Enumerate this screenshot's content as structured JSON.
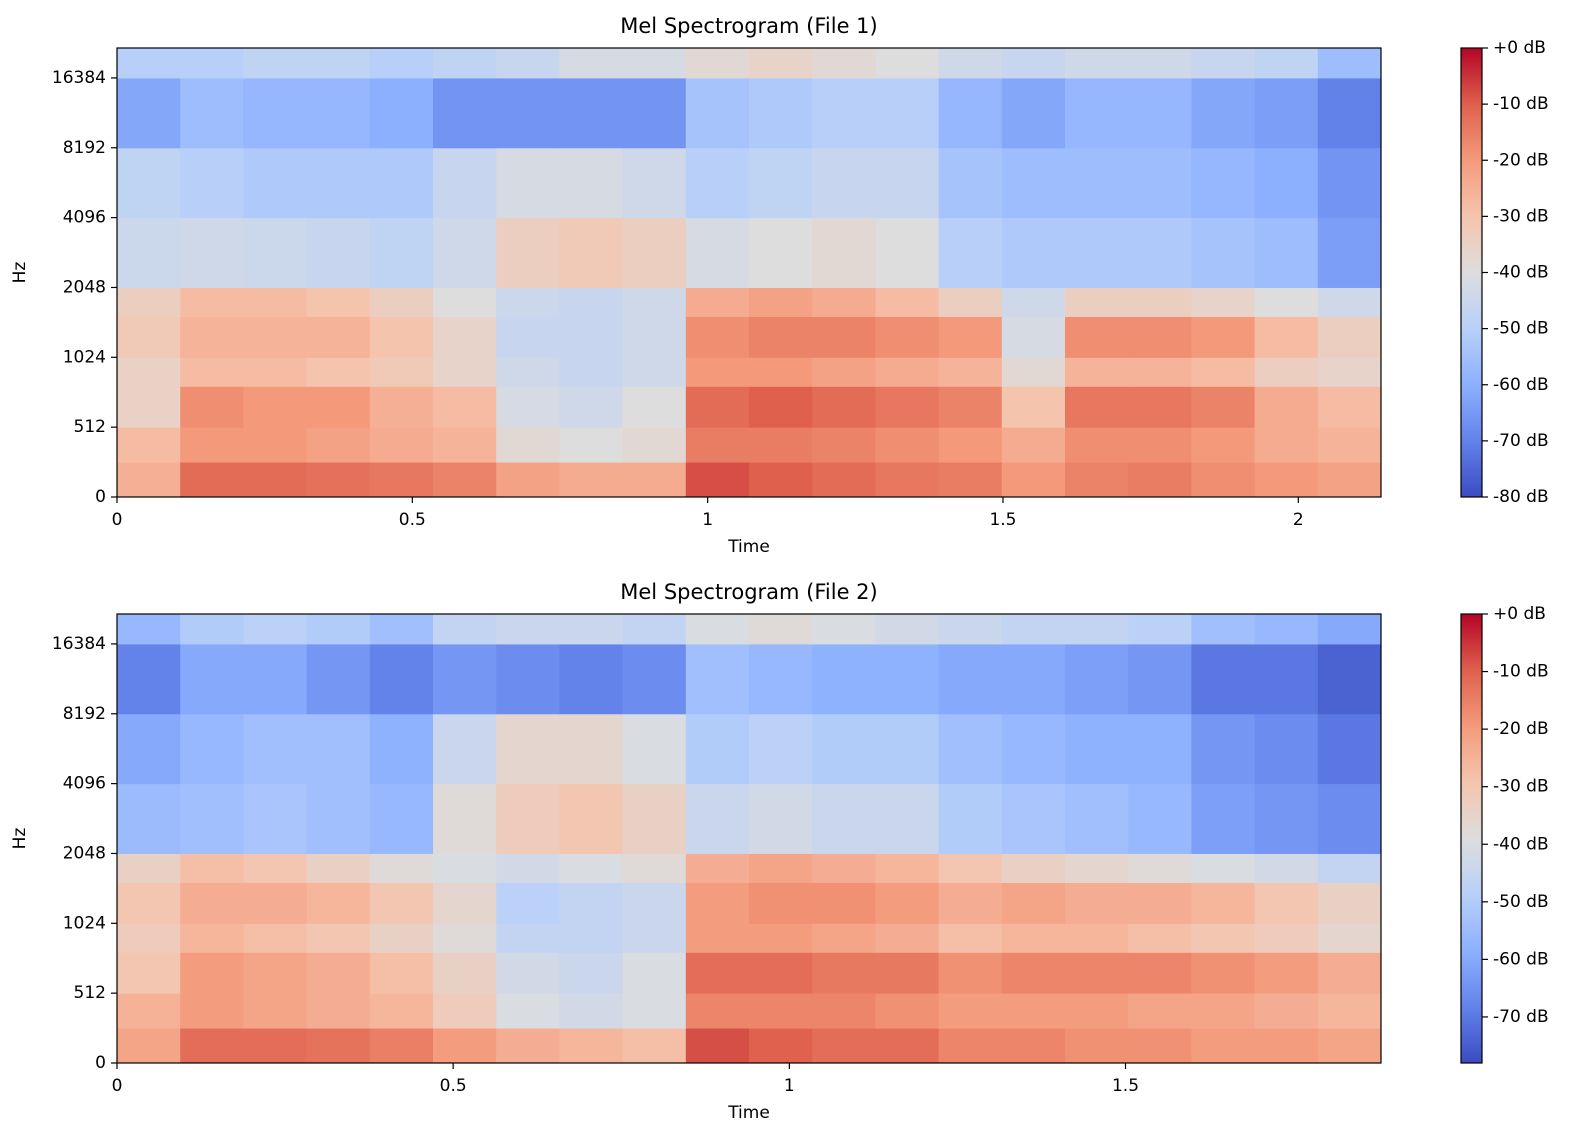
{
  "chart_data": [
    {
      "type": "heatmap",
      "title": "Mel Spectrogram (File 1)",
      "xlabel": "Time",
      "ylabel": "Hz",
      "xlim": [
        0,
        2.14
      ],
      "xticks": [
        0,
        0.5,
        1,
        1.5,
        2
      ],
      "ylim": [
        0,
        22050
      ],
      "yticks": [
        0,
        512,
        1024,
        2048,
        4096,
        8192,
        16384
      ],
      "yscale": "symlog",
      "linthresh": 512,
      "y_edges": [
        0,
        256,
        512,
        768,
        1024,
        1536,
        2048,
        4096,
        8192,
        16384,
        22050
      ],
      "colormap": "coolwarm",
      "clim": [
        -80,
        0
      ],
      "cticks": [
        {
          "value": 0,
          "label": "+0 dB"
        },
        {
          "value": -10,
          "label": "-10 dB"
        },
        {
          "value": -20,
          "label": "-20 dB"
        },
        {
          "value": -30,
          "label": "-30 dB"
        },
        {
          "value": -40,
          "label": "-40 dB"
        },
        {
          "value": -50,
          "label": "-50 dB"
        },
        {
          "value": -60,
          "label": "-60 dB"
        },
        {
          "value": -70,
          "label": "-70 dB"
        },
        {
          "value": -80,
          "label": "-80 dB"
        }
      ],
      "z": [
        [
          -25,
          -12,
          -12,
          -13,
          -14,
          -16,
          -22,
          -24,
          -24,
          -8,
          -10,
          -12,
          -14,
          -15,
          -20,
          -16,
          -15,
          -18,
          -20,
          -22
        ],
        [
          -28,
          -20,
          -20,
          -22,
          -24,
          -26,
          -38,
          -40,
          -38,
          -15,
          -15,
          -16,
          -18,
          -20,
          -24,
          -18,
          -18,
          -20,
          -24,
          -26
        ],
        [
          -35,
          -18,
          -20,
          -20,
          -25,
          -28,
          -42,
          -44,
          -40,
          -12,
          -10,
          -12,
          -14,
          -16,
          -30,
          -14,
          -14,
          -16,
          -24,
          -28
        ],
        [
          -35,
          -28,
          -28,
          -30,
          -32,
          -36,
          -44,
          -46,
          -44,
          -20,
          -20,
          -22,
          -24,
          -26,
          -38,
          -26,
          -26,
          -28,
          -34,
          -36
        ],
        [
          -32,
          -26,
          -26,
          -26,
          -30,
          -36,
          -46,
          -46,
          -44,
          -18,
          -16,
          -16,
          -18,
          -20,
          -42,
          -18,
          -18,
          -20,
          -28,
          -34
        ],
        [
          -34,
          -28,
          -28,
          -30,
          -34,
          -40,
          -45,
          -46,
          -44,
          -24,
          -22,
          -24,
          -28,
          -34,
          -44,
          -34,
          -34,
          -36,
          -40,
          -44
        ],
        [
          -45,
          -44,
          -45,
          -46,
          -48,
          -44,
          -34,
          -32,
          -34,
          -42,
          -40,
          -38,
          -40,
          -50,
          -52,
          -52,
          -52,
          -54,
          -56,
          -64
        ],
        [
          -48,
          -50,
          -52,
          -52,
          -52,
          -46,
          -42,
          -42,
          -44,
          -50,
          -48,
          -46,
          -46,
          -54,
          -56,
          -56,
          -56,
          -58,
          -60,
          -66
        ],
        [
          -62,
          -56,
          -58,
          -58,
          -60,
          -66,
          -66,
          -66,
          -66,
          -54,
          -52,
          -50,
          -50,
          -58,
          -62,
          -58,
          -58,
          -62,
          -64,
          -70
        ],
        [
          -50,
          -50,
          -48,
          -48,
          -50,
          -48,
          -46,
          -42,
          -42,
          -38,
          -36,
          -38,
          -40,
          -44,
          -46,
          -44,
          -44,
          -46,
          -48,
          -56
        ]
      ]
    },
    {
      "type": "heatmap",
      "title": "Mel Spectrogram (File 2)",
      "xlabel": "Time",
      "ylabel": "Hz",
      "xlim": [
        0,
        1.88
      ],
      "xticks": [
        0,
        0.5,
        1,
        1.5
      ],
      "ylim": [
        0,
        22050
      ],
      "yticks": [
        0,
        512,
        1024,
        2048,
        4096,
        8192,
        16384
      ],
      "yscale": "symlog",
      "linthresh": 512,
      "y_edges": [
        0,
        256,
        512,
        768,
        1024,
        1536,
        2048,
        4096,
        8192,
        16384,
        22050
      ],
      "colormap": "coolwarm",
      "clim": [
        -78,
        0
      ],
      "cticks": [
        {
          "value": 0,
          "label": "+0 dB"
        },
        {
          "value": -10,
          "label": "-10 dB"
        },
        {
          "value": -20,
          "label": "-20 dB"
        },
        {
          "value": -30,
          "label": "-30 dB"
        },
        {
          "value": -40,
          "label": "-40 dB"
        },
        {
          "value": -50,
          "label": "-50 dB"
        },
        {
          "value": -60,
          "label": "-60 dB"
        },
        {
          "value": -70,
          "label": "-70 dB"
        }
      ],
      "z": [
        [
          -22,
          -12,
          -12,
          -13,
          -15,
          -20,
          -24,
          -26,
          -28,
          -8,
          -10,
          -12,
          -12,
          -16,
          -16,
          -18,
          -18,
          -20,
          -20,
          -22
        ],
        [
          -25,
          -20,
          -22,
          -24,
          -26,
          -32,
          -40,
          -42,
          -40,
          -16,
          -16,
          -16,
          -18,
          -20,
          -20,
          -20,
          -22,
          -22,
          -24,
          -26
        ],
        [
          -30,
          -20,
          -22,
          -24,
          -28,
          -34,
          -42,
          -44,
          -40,
          -12,
          -12,
          -14,
          -14,
          -18,
          -16,
          -16,
          -16,
          -18,
          -20,
          -24
        ],
        [
          -32,
          -26,
          -28,
          -30,
          -34,
          -38,
          -46,
          -46,
          -44,
          -20,
          -20,
          -22,
          -24,
          -28,
          -26,
          -26,
          -28,
          -30,
          -32,
          -36
        ],
        [
          -30,
          -24,
          -24,
          -26,
          -30,
          -36,
          -48,
          -46,
          -44,
          -20,
          -18,
          -18,
          -20,
          -24,
          -22,
          -24,
          -24,
          -26,
          -30,
          -34
        ],
        [
          -34,
          -28,
          -30,
          -34,
          -38,
          -40,
          -42,
          -40,
          -38,
          -24,
          -22,
          -24,
          -26,
          -30,
          -34,
          -36,
          -38,
          -40,
          -42,
          -46
        ],
        [
          -55,
          -54,
          -52,
          -54,
          -56,
          -38,
          -32,
          -30,
          -34,
          -44,
          -42,
          -44,
          -44,
          -50,
          -52,
          -54,
          -56,
          -62,
          -64,
          -66
        ],
        [
          -60,
          -56,
          -54,
          -54,
          -58,
          -44,
          -36,
          -36,
          -40,
          -50,
          -48,
          -50,
          -50,
          -54,
          -56,
          -58,
          -58,
          -64,
          -66,
          -70
        ],
        [
          -68,
          -60,
          -60,
          -64,
          -68,
          -64,
          -66,
          -68,
          -66,
          -54,
          -56,
          -58,
          -58,
          -60,
          -60,
          -62,
          -64,
          -70,
          -70,
          -74
        ],
        [
          -56,
          -50,
          -48,
          -50,
          -54,
          -46,
          -44,
          -44,
          -46,
          -40,
          -38,
          -40,
          -42,
          -44,
          -46,
          -46,
          -48,
          -54,
          -56,
          -60
        ]
      ]
    }
  ]
}
